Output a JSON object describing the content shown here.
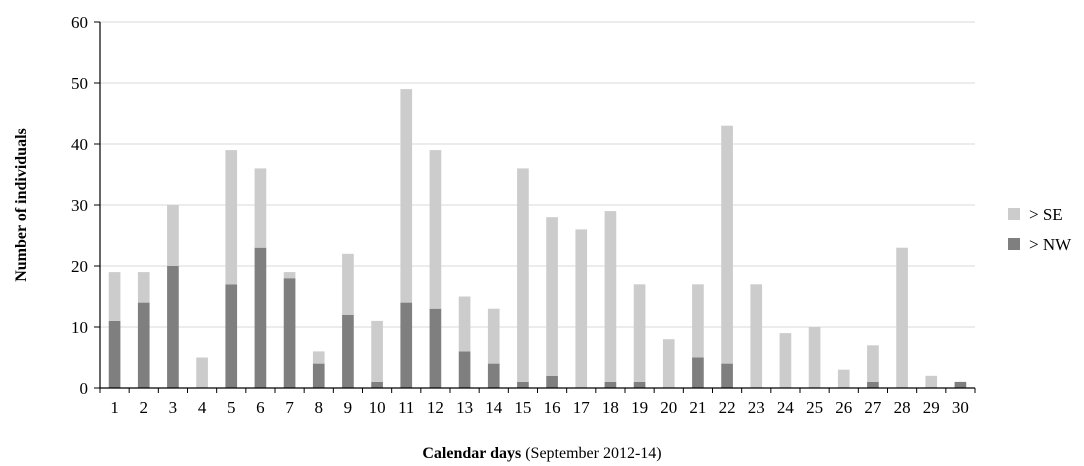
{
  "chart_data": {
    "type": "bar",
    "stacked": true,
    "categories": [
      "1",
      "2",
      "3",
      "4",
      "5",
      "6",
      "7",
      "8",
      "9",
      "10",
      "11",
      "12",
      "13",
      "14",
      "15",
      "16",
      "17",
      "18",
      "19",
      "20",
      "21",
      "22",
      "23",
      "24",
      "25",
      "26",
      "27",
      "28",
      "29",
      "30"
    ],
    "series": [
      {
        "name": "> NW",
        "color": "#7f7f7f",
        "values": [
          11,
          14,
          20,
          0,
          17,
          23,
          18,
          4,
          12,
          1,
          14,
          13,
          6,
          4,
          1,
          2,
          0,
          1,
          1,
          0,
          5,
          4,
          0,
          0,
          0,
          0,
          1,
          0,
          0,
          1
        ]
      },
      {
        "name": "> SE",
        "color": "#cccccc",
        "values": [
          8,
          5,
          10,
          5,
          22,
          13,
          1,
          2,
          10,
          10,
          35,
          26,
          9,
          9,
          35,
          26,
          26,
          28,
          16,
          8,
          12,
          39,
          17,
          9,
          10,
          3,
          6,
          23,
          2,
          0
        ]
      }
    ],
    "ylim": [
      0,
      60
    ],
    "yticks": [
      0,
      10,
      20,
      30,
      40,
      50,
      60
    ],
    "ylabel": "Number of individuals",
    "xlabel_bold": "Calendar days",
    "xlabel_rest": " (September 2012-14)",
    "grid": true,
    "legend_position": "right",
    "legend_order": [
      "> SE",
      "> NW"
    ]
  }
}
